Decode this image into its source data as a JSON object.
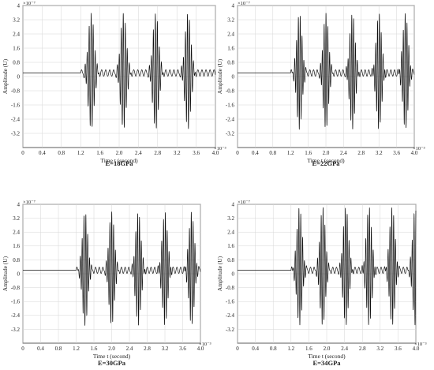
{
  "chart_data": [
    {
      "type": "line",
      "xlabel": "Time t (second)",
      "ylabel": "Amplitude (U)",
      "caption": "E=18GPa",
      "x_multiplier": "×10⁻³",
      "y_multiplier": "×10⁻⁷",
      "xlim": [
        0,
        4.0
      ],
      "ylim": [
        -4,
        4
      ],
      "x_ticks": [
        "0",
        "0.4",
        "0.8",
        "1.2",
        "1.6",
        "2.0",
        "2.4",
        "2.8",
        "3.2",
        "3.6",
        "4.0"
      ],
      "y_ticks": [
        "-3.2",
        "-2.4",
        "-1.6",
        "-0.8",
        "0",
        "0.8",
        "1.6",
        "2.4",
        "3.2",
        "4"
      ],
      "grid": true,
      "baseline": 0.2,
      "signal_onset": 1.2,
      "burst_centers": [
        1.42,
        2.09,
        2.76,
        3.43
      ],
      "burst_peak": 3.6,
      "burst_trough": -3.4
    },
    {
      "type": "line",
      "xlabel": "Time t (second)",
      "ylabel": "Amplitude (U)",
      "caption": "E=22GPa",
      "x_multiplier": "×10⁻³",
      "y_multiplier": "×10⁻⁷",
      "xlim": [
        0,
        4.0
      ],
      "ylim": [
        -4,
        4
      ],
      "x_ticks": [
        "0",
        "0.4",
        "0.8",
        "1.2",
        "1.6",
        "2.0",
        "2.4",
        "2.8",
        "3.2",
        "3.6",
        "4.0"
      ],
      "y_ticks": [
        "-3.2",
        "-2.4",
        "-1.6",
        "-0.8",
        "0",
        "0.8",
        "1.6",
        "2.4",
        "3.2",
        "4"
      ],
      "grid": true,
      "baseline": 0.2,
      "signal_onset": 1.2,
      "burst_centers": [
        1.4,
        2.0,
        2.6,
        3.2,
        3.8
      ],
      "burst_peak": 3.6,
      "burst_trough": -3.4
    },
    {
      "type": "line",
      "xlabel": "Time t (second)",
      "ylabel": "Amplitude (U)",
      "caption": "E=30GPa",
      "x_multiplier": "×10⁻³",
      "y_multiplier": "×10⁻⁷",
      "xlim": [
        0,
        4.0
      ],
      "ylim": [
        -4,
        4
      ],
      "x_ticks": [
        "0",
        "0.4",
        "0.8",
        "1.2",
        "1.6",
        "2.0",
        "2.4",
        "2.8",
        "3.2",
        "3.6",
        "4.0"
      ],
      "y_ticks": [
        "-3.2",
        "-2.4",
        "-1.6",
        "-0.8",
        "0",
        "0.8",
        "1.6",
        "2.4",
        "3.2",
        "4"
      ],
      "grid": true,
      "baseline": 0.2,
      "signal_onset": 1.2,
      "burst_centers": [
        1.4,
        2.0,
        2.6,
        3.2,
        3.8
      ],
      "burst_peak": 3.6,
      "burst_trough": -3.4
    },
    {
      "type": "line",
      "xlabel": "Time t (second)",
      "ylabel": "Amplitude (U)",
      "caption": "E=34GPa",
      "x_multiplier": "×10⁻³",
      "y_multiplier": "×10⁻⁷",
      "xlim": [
        0,
        4.0
      ],
      "ylim": [
        -4,
        4
      ],
      "x_ticks": [
        "0",
        "0.4",
        "0.8",
        "1.2",
        "1.6",
        "2.0",
        "2.4",
        "2.8",
        "3.2",
        "3.6",
        "4.0"
      ],
      "y_ticks": [
        "-3.2",
        "-2.4",
        "-1.6",
        "-0.8",
        "0",
        "0.8",
        "1.6",
        "2.4",
        "3.2",
        "4"
      ],
      "grid": true,
      "baseline": 0.2,
      "signal_onset": 1.2,
      "burst_centers": [
        1.39,
        1.91,
        2.43,
        2.95,
        3.47,
        3.99
      ],
      "burst_peak": 3.9,
      "burst_trough": -3.4
    }
  ]
}
